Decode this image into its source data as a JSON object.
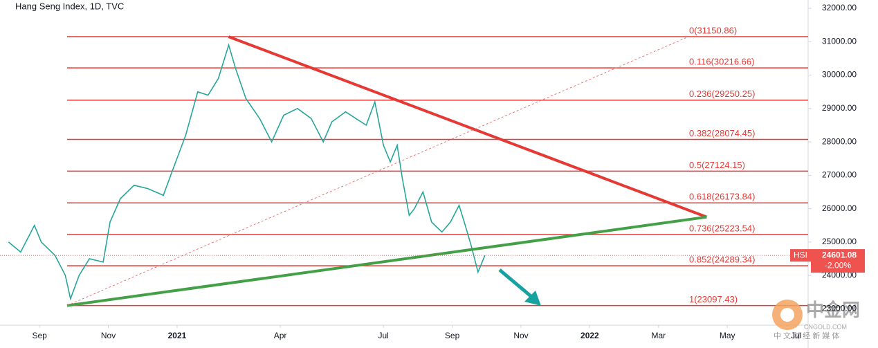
{
  "chart_data": {
    "type": "line",
    "title": "Hang Seng Index, 1D, TVC",
    "xlim": [
      -1.15,
      22.35
    ],
    "ylim": [
      22510,
      32250
    ],
    "xticks": [
      {
        "value": 0,
        "label": "Sep"
      },
      {
        "value": 2,
        "label": "Nov"
      },
      {
        "value": 4,
        "label": "2021"
      },
      {
        "value": 7,
        "label": "Apr"
      },
      {
        "value": 10,
        "label": "Jul"
      },
      {
        "value": 12,
        "label": "Sep"
      },
      {
        "value": 14,
        "label": "Nov"
      },
      {
        "value": 16,
        "label": "2022"
      },
      {
        "value": 18,
        "label": "Mar"
      },
      {
        "value": 20,
        "label": "May"
      },
      {
        "value": 22,
        "label": "Jul"
      }
    ],
    "yticks": [
      {
        "value": 23000,
        "label": "23000.00"
      },
      {
        "value": 24000,
        "label": "24000.00"
      },
      {
        "value": 25000,
        "label": "25000.00"
      },
      {
        "value": 26000,
        "label": "26000.00"
      },
      {
        "value": 27000,
        "label": "27000.00"
      },
      {
        "value": 28000,
        "label": "28000.00"
      },
      {
        "value": 29000,
        "label": "29000.00"
      },
      {
        "value": 30000,
        "label": "30000.00"
      },
      {
        "value": 31000,
        "label": "31000.00"
      },
      {
        "value": 32000,
        "label": "32000.00"
      }
    ],
    "series": [
      {
        "name": "HSI",
        "color": "#26a69a",
        "x": [
          -0.9,
          -0.55,
          -0.15,
          0.05,
          0.45,
          0.75,
          0.9,
          1.15,
          1.45,
          1.85,
          2.05,
          2.35,
          2.75,
          3.15,
          3.6,
          3.85,
          4.25,
          4.6,
          4.9,
          5.2,
          5.5,
          5.7,
          6.0,
          6.4,
          6.75,
          7.1,
          7.5,
          7.9,
          8.25,
          8.5,
          8.9,
          9.2,
          9.5,
          9.75,
          10.0,
          10.2,
          10.4,
          10.55,
          10.75,
          10.9,
          11.15,
          11.4,
          11.7,
          11.95,
          12.2,
          12.35,
          12.55,
          12.75,
          12.95
        ],
        "values": [
          25000,
          24700,
          25500,
          25000,
          24600,
          24000,
          23300,
          24000,
          24500,
          24400,
          25600,
          26300,
          26700,
          26600,
          26400,
          27100,
          28200,
          29500,
          29400,
          29900,
          30900,
          30200,
          29300,
          28700,
          28000,
          28800,
          29000,
          28700,
          28000,
          28600,
          28900,
          28700,
          28500,
          29200,
          27900,
          27400,
          27900,
          26900,
          25800,
          26000,
          26500,
          25600,
          25300,
          25600,
          26100,
          25600,
          24900,
          24100,
          24600
        ]
      }
    ],
    "fib_levels": [
      {
        "label": "0(31150.86)",
        "value": 31150.86
      },
      {
        "label": "0.116(30216.66)",
        "value": 30216.66
      },
      {
        "label": "0.236(29250.25)",
        "value": 29250.25
      },
      {
        "label": "0.382(28074.45)",
        "value": 28074.45
      },
      {
        "label": "0.5(27124.15)",
        "value": 27124.15
      },
      {
        "label": "0.618(26173.84)",
        "value": 26173.84
      },
      {
        "label": "0.736(25223.54)",
        "value": 25223.54
      },
      {
        "label": "0.852(24289.34)",
        "value": 24289.34
      },
      {
        "label": "1(23097.43)",
        "value": 23097.43
      }
    ],
    "fib_color": "#e53935",
    "trendlines": [
      {
        "color": "#e53935",
        "x": [
          5.5,
          19.4
        ],
        "y": [
          31150,
          25750
        ]
      },
      {
        "color": "#43a047",
        "x": [
          0.8,
          19.4
        ],
        "y": [
          23097,
          25750
        ]
      },
      {
        "color": "#e57373",
        "dashed": true,
        "x": [
          0.8,
          18.8
        ],
        "y": [
          23097,
          31120
        ]
      }
    ],
    "last_price": {
      "symbol": "HSI",
      "value": 24601.08,
      "change": "-2.00%"
    },
    "watermark": {
      "logo": "中金网",
      "site": "CNGOLD.COM",
      "slogan": "中 文 财 经 新 媒 体"
    }
  }
}
